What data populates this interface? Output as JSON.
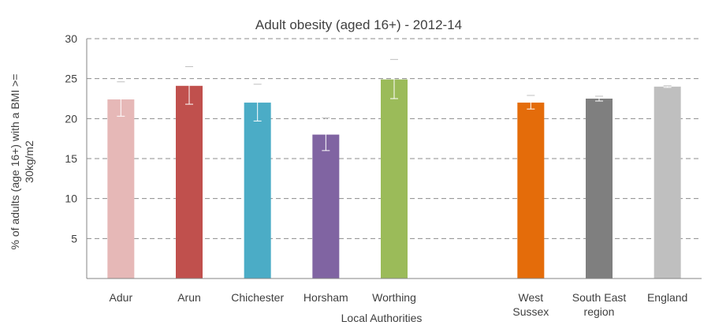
{
  "chart_data": {
    "type": "bar",
    "title": "Adult obesity (aged 16+) - 2012-14",
    "ylabel": "% of adults (age 16+) with a BMI >= 30kg/m2",
    "ylim": [
      0,
      30
    ],
    "yticks": [
      "5",
      "10",
      "15",
      "20",
      "25",
      "30"
    ],
    "ytick_values": [
      5,
      10,
      15,
      20,
      25,
      30
    ],
    "grid": true,
    "group_label": "Local Authorities",
    "bars": [
      {
        "label": [
          "Adur"
        ],
        "value": 22.4,
        "err_low": 20.3,
        "err_high": 24.6,
        "color": "#e6b8b7"
      },
      {
        "label": [
          "Arun"
        ],
        "value": 24.1,
        "err_low": 21.8,
        "err_high": 26.5,
        "color": "#c0504d"
      },
      {
        "label": [
          "Chichester"
        ],
        "value": 22.0,
        "err_low": 19.7,
        "err_high": 24.3,
        "color": "#4bacc6"
      },
      {
        "label": [
          "Horsham"
        ],
        "value": 18.0,
        "err_low": 16.0,
        "err_high": 20.1,
        "color": "#8064a2"
      },
      {
        "label": [
          "Worthing"
        ],
        "value": 24.9,
        "err_low": 22.5,
        "err_high": 27.4,
        "color": "#9bbb59"
      },
      {
        "label": [
          "West",
          "Sussex"
        ],
        "value": 22.0,
        "err_low": 21.2,
        "err_high": 22.9,
        "color": "#e46c0a"
      },
      {
        "label": [
          "South East",
          "region"
        ],
        "value": 22.5,
        "err_low": 22.2,
        "err_high": 22.8,
        "color": "#7f7f7f"
      },
      {
        "label": [
          "England"
        ],
        "value": 24.0,
        "err_low": 23.9,
        "err_high": 24.1,
        "color": "#bfbfbf"
      }
    ]
  }
}
